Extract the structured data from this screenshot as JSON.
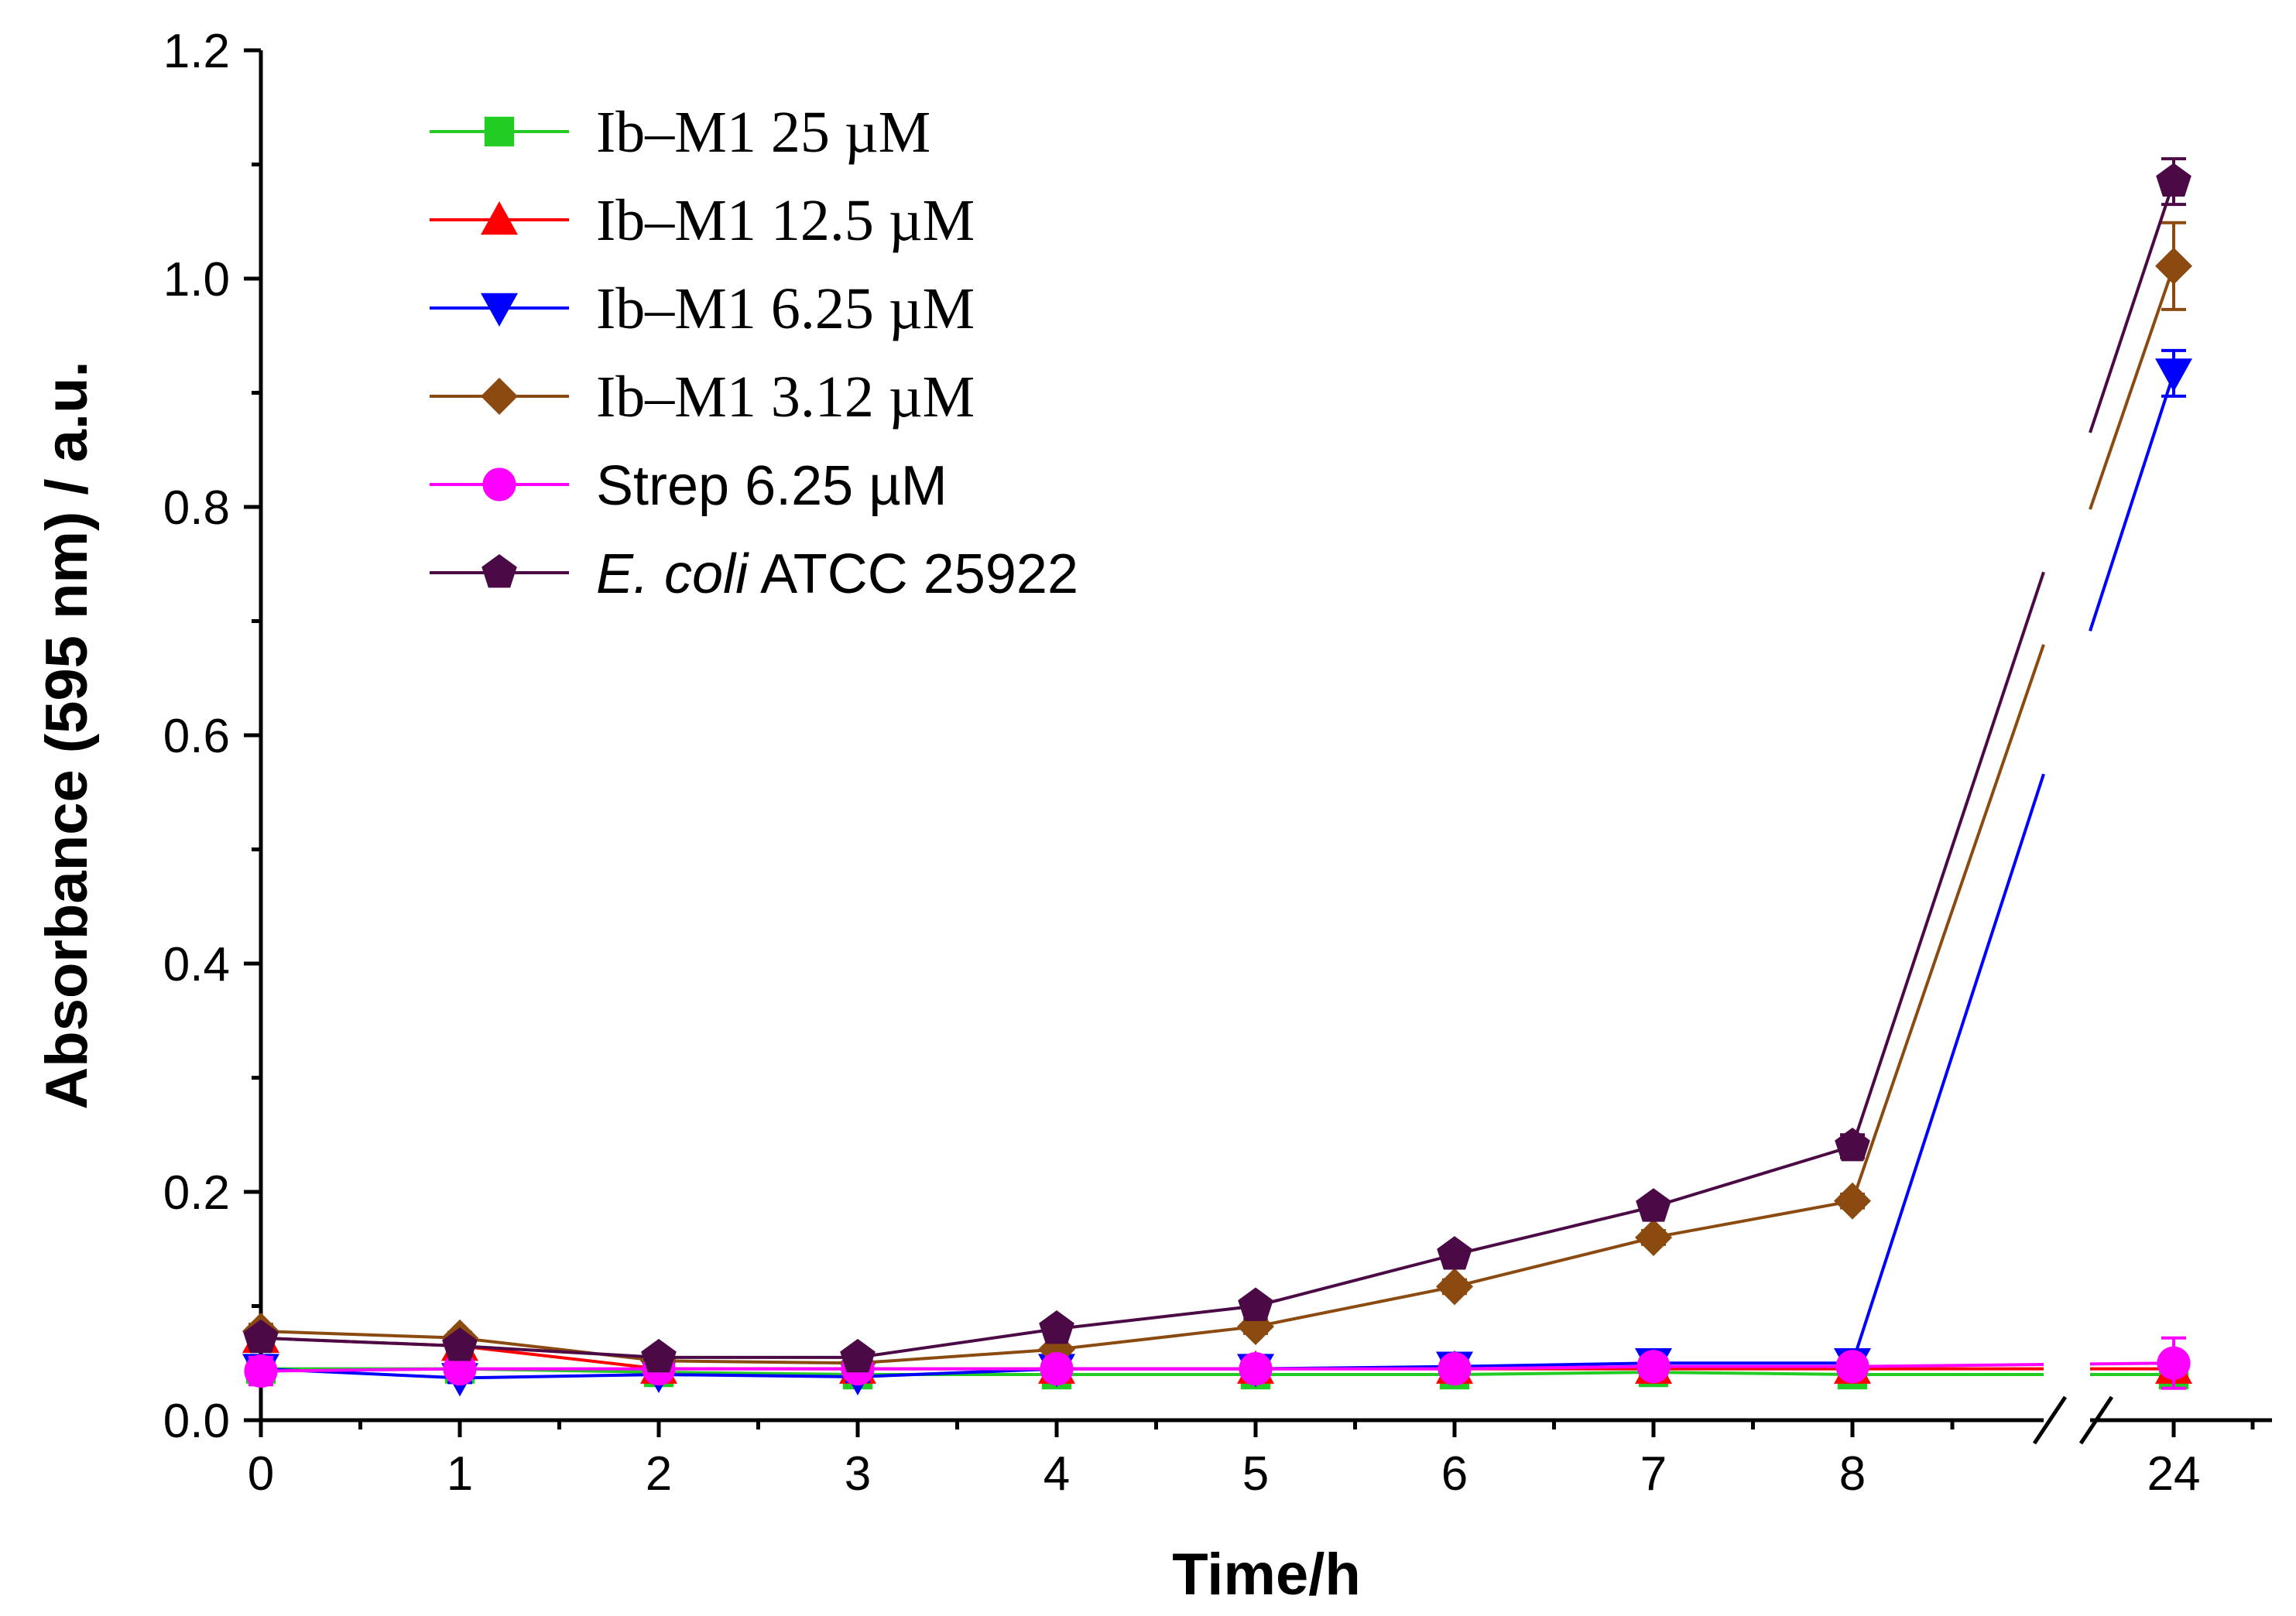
{
  "chart_data": {
    "type": "line",
    "title": "",
    "xlabel": "Time/h",
    "ylabel": "Absorbance (595 nm) / a.u.",
    "categories": [
      "0",
      "1",
      "2",
      "3",
      "4",
      "5",
      "6",
      "7",
      "8",
      "24"
    ],
    "x": [
      0,
      1,
      2,
      3,
      4,
      5,
      6,
      7,
      8,
      24
    ],
    "axis_break_after": "8",
    "ylim": [
      0,
      1.2
    ],
    "yticks": [
      "0.0",
      "0.2",
      "0.4",
      "0.6",
      "0.8",
      "1.0",
      "1.2"
    ],
    "ytick_values": [
      0,
      0.2,
      0.4,
      0.6,
      0.8,
      1.0,
      1.2
    ],
    "legend_position": "top-left",
    "series": [
      {
        "name": "Ib–M1 25 µM",
        "color": "#22cc22",
        "marker": "square",
        "values": [
          0.045,
          0.045,
          0.042,
          0.04,
          0.04,
          0.04,
          0.04,
          0.042,
          0.04,
          0.04
        ],
        "errors": [
          0.01,
          0.005,
          0.004,
          0.004,
          0.004,
          0.004,
          0.004,
          0.004,
          0.004,
          0.01
        ]
      },
      {
        "name": "Ib–M1 12.5 µM",
        "color": "#ff0000",
        "marker": "triangle-up",
        "values": [
          0.072,
          0.065,
          0.045,
          0.045,
          0.045,
          0.045,
          0.045,
          0.045,
          0.045,
          0.045
        ],
        "errors": [
          0.01,
          0.006,
          0.004,
          0.004,
          0.004,
          0.004,
          0.004,
          0.004,
          0.004,
          0.01
        ]
      },
      {
        "name": "Ib–M1 6.25 µM",
        "color": "#0000ff",
        "marker": "triangle-down",
        "values": [
          0.045,
          0.037,
          0.04,
          0.038,
          0.045,
          0.045,
          0.047,
          0.05,
          0.05,
          0.917
        ],
        "errors": [
          0.006,
          0.004,
          0.004,
          0.004,
          0.004,
          0.004,
          0.004,
          0.005,
          0.006,
          0.02
        ]
      },
      {
        "name": "Ib–M1 3.12 µM",
        "color": "#8B4A10",
        "marker": "diamond",
        "values": [
          0.078,
          0.072,
          0.052,
          0.05,
          0.062,
          0.082,
          0.117,
          0.16,
          0.192,
          1.011
        ],
        "errors": [
          0.006,
          0.005,
          0.004,
          0.004,
          0.004,
          0.006,
          0.006,
          0.006,
          0.006,
          0.038
        ]
      },
      {
        "name": "Strep 6.25 µM",
        "color": "#ff00ff",
        "marker": "circle",
        "values": [
          0.043,
          0.045,
          0.045,
          0.045,
          0.045,
          0.045,
          0.045,
          0.047,
          0.047,
          0.05
        ],
        "errors": [
          0.012,
          0.006,
          0.004,
          0.004,
          0.004,
          0.004,
          0.004,
          0.004,
          0.004,
          0.022
        ]
      },
      {
        "name_prefix": "E. coli",
        "name_suffix": " ATCC 25922",
        "name": "E. coli ATCC 25922",
        "color": "#4B0A45",
        "marker": "pentagon",
        "values": [
          0.072,
          0.065,
          0.055,
          0.055,
          0.08,
          0.1,
          0.145,
          0.187,
          0.24,
          1.085
        ],
        "errors": [
          0.006,
          0.005,
          0.004,
          0.004,
          0.004,
          0.005,
          0.006,
          0.006,
          0.01,
          0.02
        ]
      }
    ]
  }
}
